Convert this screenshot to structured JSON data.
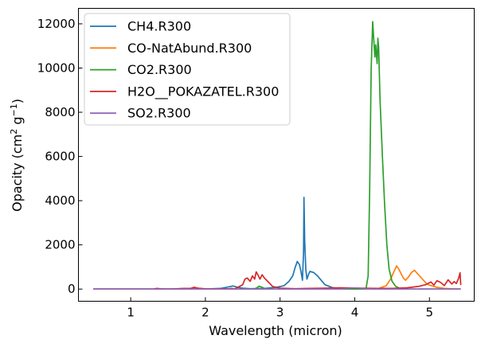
{
  "chart_data": {
    "type": "line",
    "xlabel": "Wavelength (micron)",
    "ylabel_main": "Opacity (cm",
    "ylabel_sup1": "2",
    "ylabel_mid": " g",
    "ylabel_sup2": "−1",
    "ylabel_end": ")",
    "xlim": [
      0.3,
      5.6
    ],
    "ylim": [
      -550,
      12700
    ],
    "xticks": [
      1,
      2,
      3,
      4,
      5
    ],
    "yticks": [
      0,
      2000,
      4000,
      6000,
      8000,
      10000,
      12000
    ],
    "legend_position": "top-left",
    "series": [
      {
        "name": "CH4.R300",
        "color": "#1f77b4",
        "points": [
          [
            0.5,
            0
          ],
          [
            1.5,
            0
          ],
          [
            1.62,
            12
          ],
          [
            1.72,
            35
          ],
          [
            1.8,
            15
          ],
          [
            2.0,
            5
          ],
          [
            2.2,
            30
          ],
          [
            2.3,
            90
          ],
          [
            2.37,
            140
          ],
          [
            2.43,
            80
          ],
          [
            2.5,
            40
          ],
          [
            2.6,
            20
          ],
          [
            2.8,
            30
          ],
          [
            2.95,
            80
          ],
          [
            3.05,
            150
          ],
          [
            3.12,
            350
          ],
          [
            3.17,
            600
          ],
          [
            3.2,
            950
          ],
          [
            3.23,
            1250
          ],
          [
            3.26,
            1100
          ],
          [
            3.28,
            800
          ],
          [
            3.3,
            400
          ],
          [
            3.315,
            1700
          ],
          [
            3.32,
            4150
          ],
          [
            3.33,
            2200
          ],
          [
            3.345,
            900
          ],
          [
            3.36,
            450
          ],
          [
            3.38,
            650
          ],
          [
            3.4,
            800
          ],
          [
            3.45,
            750
          ],
          [
            3.5,
            600
          ],
          [
            3.55,
            400
          ],
          [
            3.6,
            200
          ],
          [
            3.7,
            70
          ],
          [
            3.8,
            25
          ],
          [
            4.0,
            8
          ],
          [
            4.5,
            0
          ],
          [
            5.42,
            0
          ]
        ]
      },
      {
        "name": "CO-NatAbund.R300",
        "color": "#ff7f0e",
        "points": [
          [
            0.5,
            0
          ],
          [
            2.3,
            0
          ],
          [
            2.33,
            25
          ],
          [
            2.35,
            40
          ],
          [
            2.38,
            20
          ],
          [
            2.42,
            0
          ],
          [
            4.3,
            0
          ],
          [
            4.42,
            150
          ],
          [
            4.48,
            450
          ],
          [
            4.52,
            750
          ],
          [
            4.56,
            1050
          ],
          [
            4.59,
            900
          ],
          [
            4.62,
            700
          ],
          [
            4.65,
            500
          ],
          [
            4.68,
            400
          ],
          [
            4.72,
            550
          ],
          [
            4.76,
            750
          ],
          [
            4.8,
            850
          ],
          [
            4.84,
            700
          ],
          [
            4.88,
            550
          ],
          [
            4.92,
            400
          ],
          [
            4.96,
            250
          ],
          [
            5.0,
            180
          ],
          [
            5.1,
            80
          ],
          [
            5.2,
            30
          ],
          [
            5.3,
            10
          ],
          [
            5.42,
            0
          ]
        ]
      },
      {
        "name": "CO2.R300",
        "color": "#2ca02c",
        "points": [
          [
            0.5,
            0
          ],
          [
            1.95,
            0
          ],
          [
            2.0,
            15
          ],
          [
            2.03,
            0
          ],
          [
            2.65,
            0
          ],
          [
            2.69,
            60
          ],
          [
            2.72,
            130
          ],
          [
            2.76,
            80
          ],
          [
            2.8,
            20
          ],
          [
            2.9,
            0
          ],
          [
            4.15,
            0
          ],
          [
            4.18,
            600
          ],
          [
            4.2,
            4500
          ],
          [
            4.22,
            10000
          ],
          [
            4.24,
            12100
          ],
          [
            4.26,
            11000
          ],
          [
            4.27,
            10500
          ],
          [
            4.28,
            11050
          ],
          [
            4.3,
            10200
          ],
          [
            4.31,
            11350
          ],
          [
            4.32,
            10900
          ],
          [
            4.34,
            8500
          ],
          [
            4.37,
            6000
          ],
          [
            4.4,
            3800
          ],
          [
            4.43,
            2000
          ],
          [
            4.46,
            900
          ],
          [
            4.5,
            350
          ],
          [
            4.55,
            120
          ],
          [
            4.6,
            40
          ],
          [
            4.7,
            5
          ],
          [
            5.42,
            0
          ]
        ]
      },
      {
        "name": "H2O__POKAZATEL.R300",
        "color": "#d62728",
        "points": [
          [
            0.5,
            0
          ],
          [
            1.3,
            0
          ],
          [
            1.35,
            30
          ],
          [
            1.4,
            10
          ],
          [
            1.5,
            5
          ],
          [
            1.8,
            30
          ],
          [
            1.85,
            80
          ],
          [
            1.9,
            40
          ],
          [
            2.0,
            10
          ],
          [
            2.4,
            20
          ],
          [
            2.5,
            200
          ],
          [
            2.53,
            450
          ],
          [
            2.56,
            500
          ],
          [
            2.6,
            350
          ],
          [
            2.63,
            600
          ],
          [
            2.66,
            450
          ],
          [
            2.68,
            780
          ],
          [
            2.71,
            600
          ],
          [
            2.73,
            450
          ],
          [
            2.76,
            650
          ],
          [
            2.79,
            500
          ],
          [
            2.82,
            400
          ],
          [
            2.86,
            260
          ],
          [
            2.9,
            120
          ],
          [
            3.0,
            40
          ],
          [
            3.2,
            20
          ],
          [
            3.4,
            30
          ],
          [
            3.6,
            40
          ],
          [
            3.8,
            60
          ],
          [
            3.95,
            50
          ],
          [
            4.1,
            40
          ],
          [
            4.3,
            30
          ],
          [
            4.5,
            30
          ],
          [
            4.7,
            60
          ],
          [
            4.85,
            120
          ],
          [
            4.95,
            200
          ],
          [
            5.02,
            320
          ],
          [
            5.06,
            180
          ],
          [
            5.1,
            380
          ],
          [
            5.15,
            300
          ],
          [
            5.2,
            160
          ],
          [
            5.25,
            420
          ],
          [
            5.3,
            230
          ],
          [
            5.33,
            340
          ],
          [
            5.36,
            250
          ],
          [
            5.39,
            480
          ],
          [
            5.41,
            740
          ],
          [
            5.42,
            180
          ]
        ]
      },
      {
        "name": "SO2.R300",
        "color": "#9467bd",
        "points": [
          [
            0.5,
            0
          ],
          [
            3.8,
            0
          ],
          [
            3.92,
            35
          ],
          [
            4.0,
            55
          ],
          [
            4.07,
            40
          ],
          [
            4.15,
            10
          ],
          [
            4.25,
            0
          ],
          [
            5.42,
            0
          ]
        ]
      }
    ]
  }
}
